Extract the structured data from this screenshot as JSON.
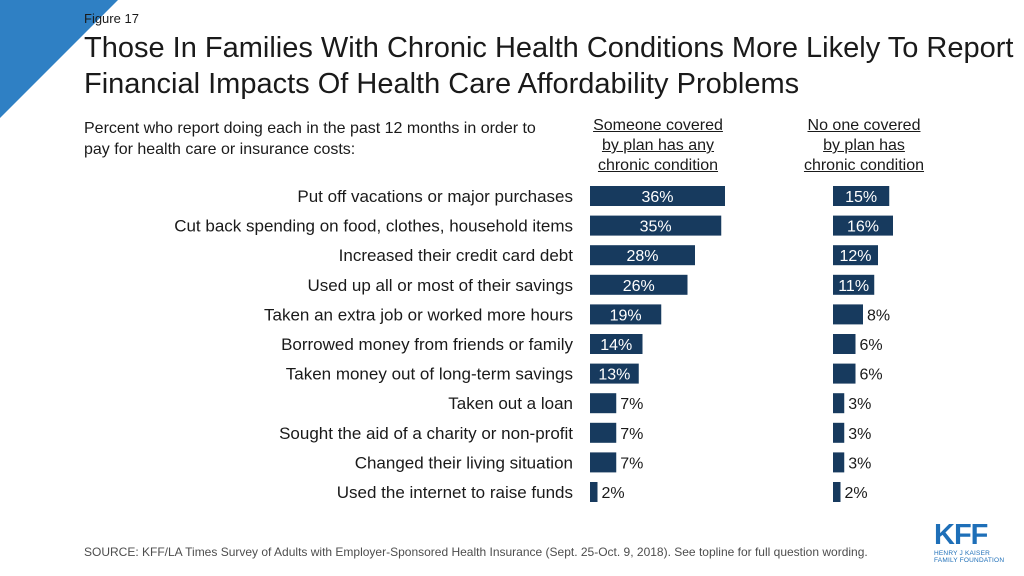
{
  "figure_label": "Figure 17",
  "title": "Those In Families With Chronic Health Conditions More Likely To Report Financial Impacts Of Health Care Affordability Problems",
  "source": "SOURCE: KFF/LA Times Survey of Adults with Employer-Sponsored Health Insurance (Sept. 25-Oct. 9, 2018). See topline for full question wording.",
  "logo": {
    "name": "KFF",
    "subtitle_line1": "HENRY J KAISER",
    "subtitle_line2": "FAMILY FOUNDATION"
  },
  "colors": {
    "bar": "#173a5e",
    "corner": "#2f80c4",
    "logo": "#1e6fb8"
  },
  "chart_data": {
    "type": "bar",
    "orientation": "horizontal",
    "subtitle": "Percent who report doing each in the past 12 months in order to pay for health care or insurance costs:",
    "categories": [
      "Put off vacations or major purchases",
      "Cut back spending on food, clothes, household items",
      "Increased their credit card debt",
      "Used up all or most of their savings",
      "Taken an extra job or worked more hours",
      "Borrowed money from friends or family",
      "Taken money out of long-term savings",
      "Taken out a loan",
      "Sought the aid of a charity or non-profit",
      "Changed their living situation",
      "Used the internet to raise funds"
    ],
    "series": [
      {
        "name": "Someone covered by plan has any chronic condition",
        "header_lines": [
          "Someone covered",
          "by plan has any",
          "chronic condition"
        ],
        "values": [
          36,
          35,
          28,
          26,
          19,
          14,
          13,
          7,
          7,
          7,
          2
        ],
        "labels": [
          "36%",
          "35%",
          "28%",
          "26%",
          "19%",
          "14%",
          "13%",
          "7%",
          "7%",
          "7%",
          "2%"
        ]
      },
      {
        "name": "No one covered by plan has chronic condition",
        "header_lines": [
          "No one covered",
          "by plan has",
          "chronic condition"
        ],
        "values": [
          15,
          16,
          12,
          11,
          8,
          6,
          6,
          3,
          3,
          3,
          2
        ],
        "labels": [
          "15%",
          "16%",
          "12%",
          "11%",
          "8%",
          "6%",
          "6%",
          "3%",
          "3%",
          "3%",
          "2%"
        ]
      }
    ],
    "unit": "%"
  }
}
